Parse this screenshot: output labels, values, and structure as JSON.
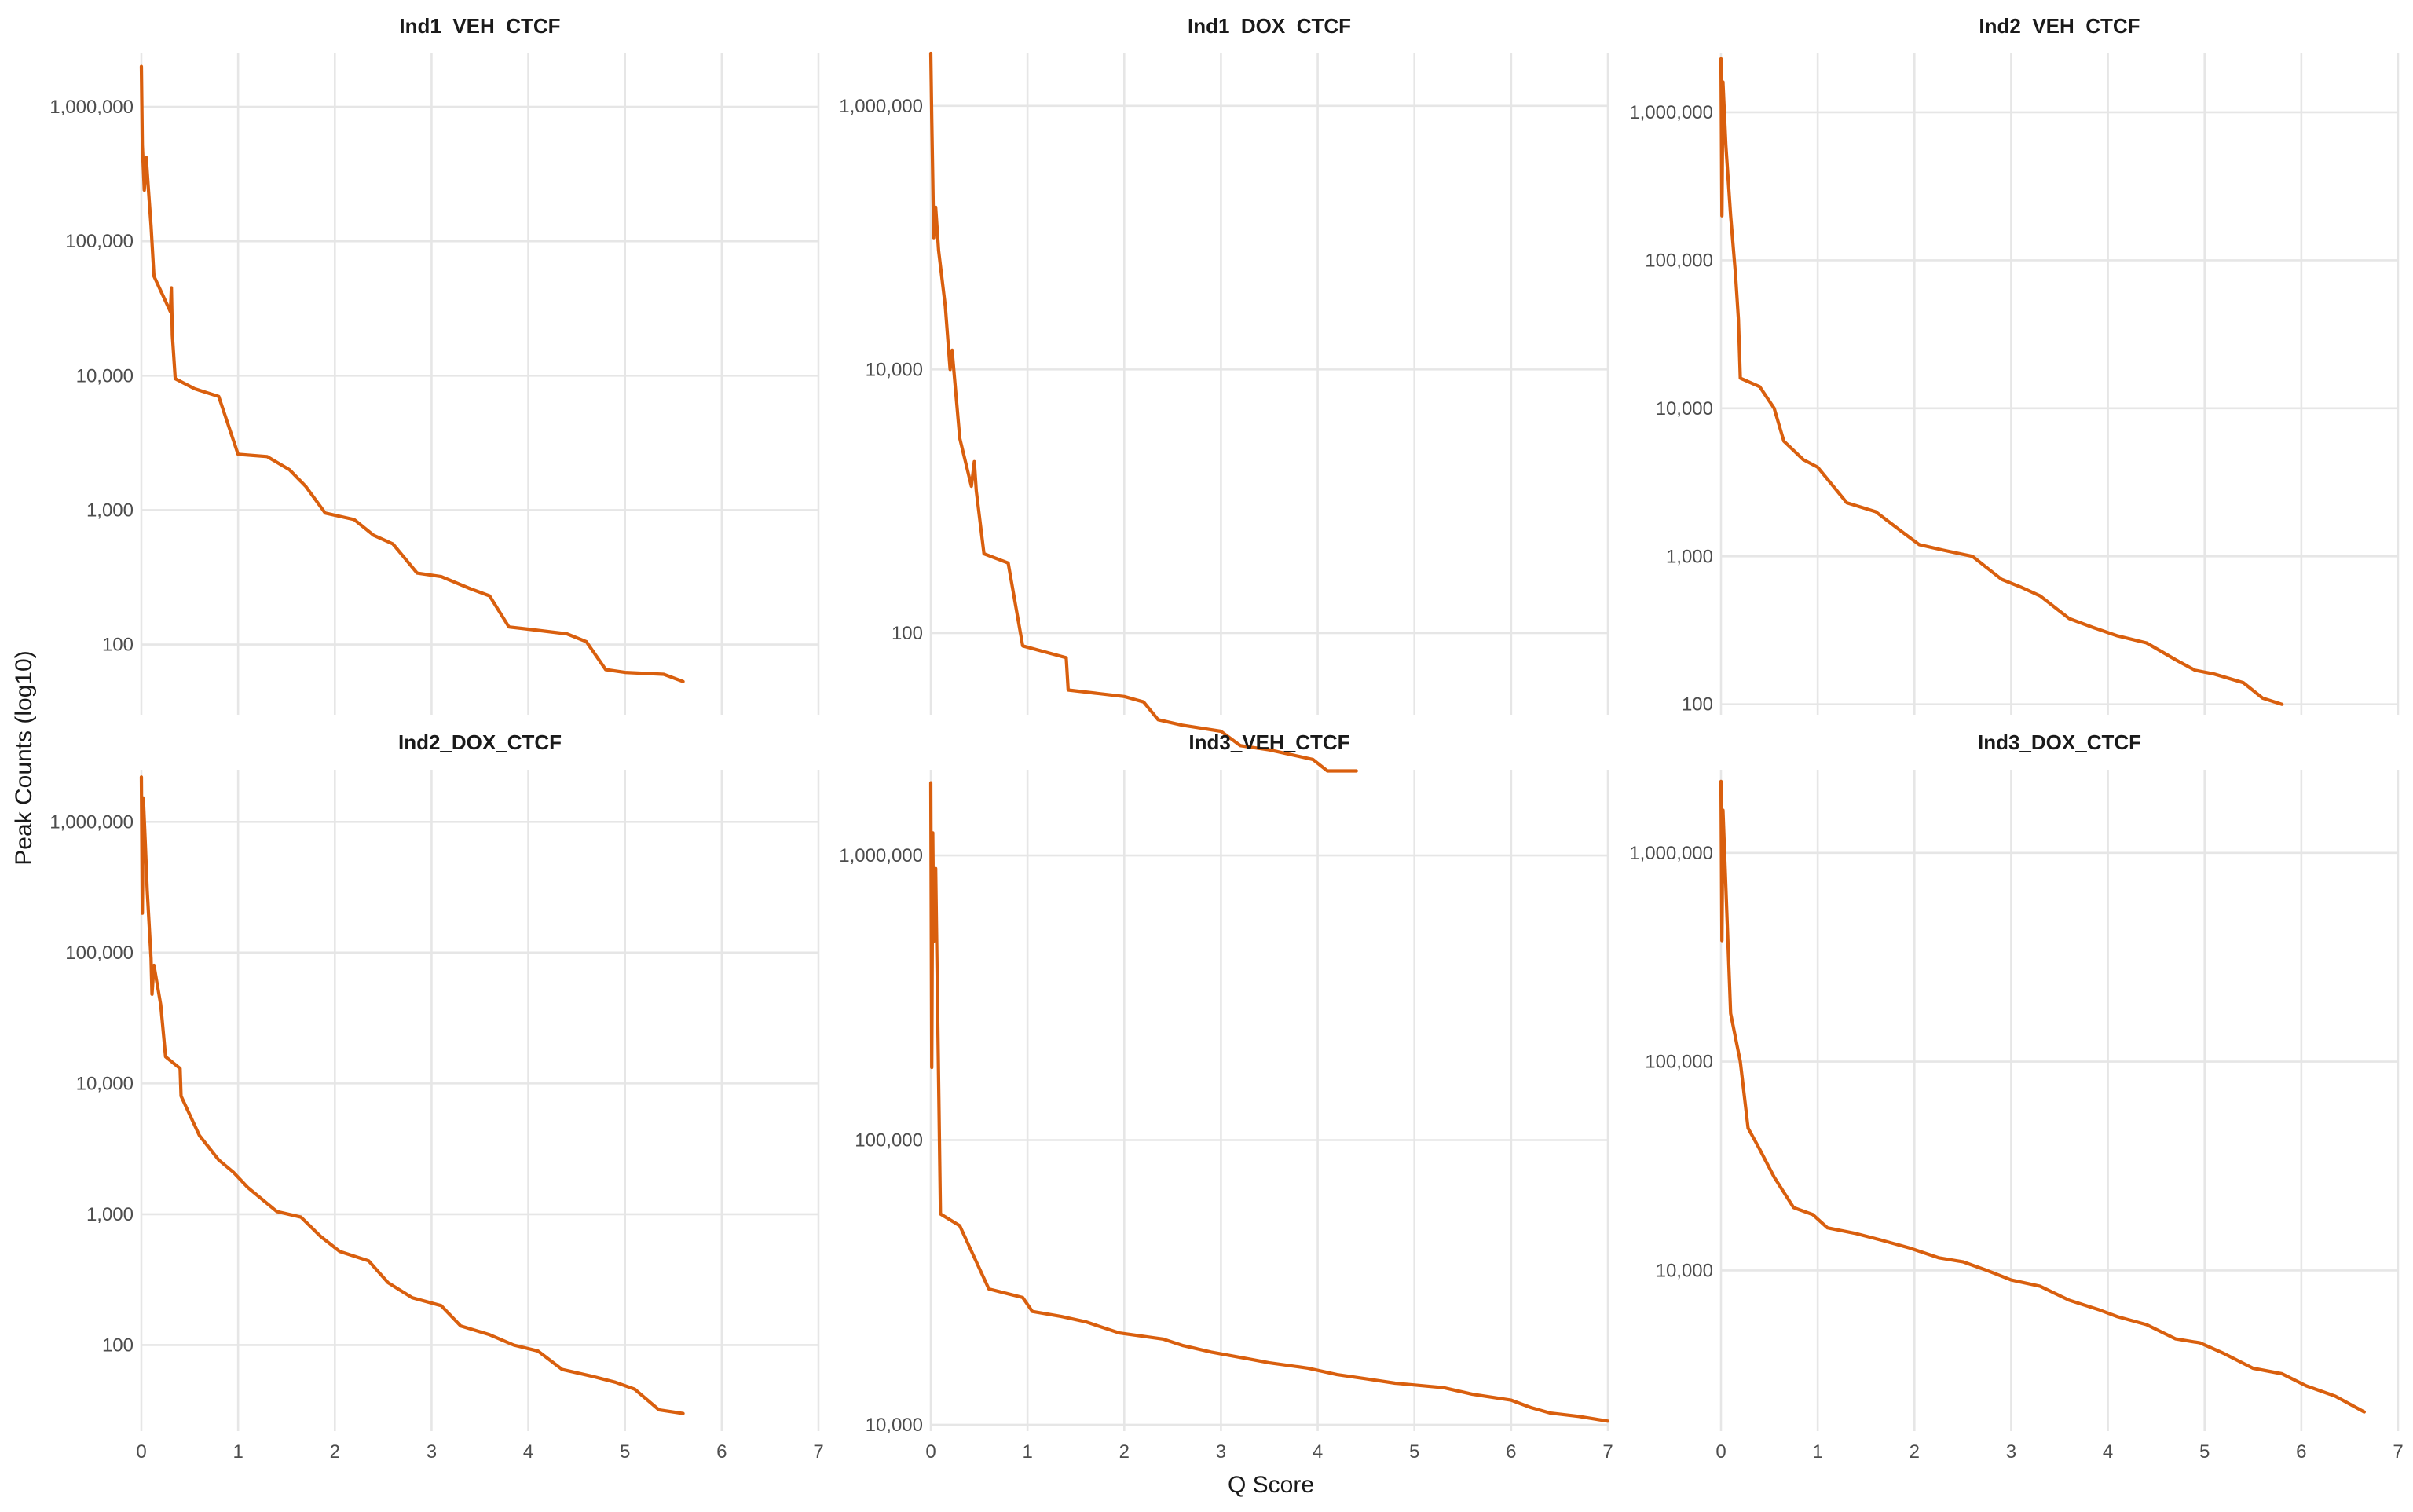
{
  "chart_data": {
    "type": "line",
    "xlabel": "Q Score",
    "ylabel": "Peak Counts (log10)",
    "y_scale": "log10",
    "grid": true,
    "legend": "none",
    "line_color": "#d95f0e",
    "layout": "2 rows x 3 columns",
    "panels": [
      {
        "title": "Ind1_VEH_CTCF",
        "xlim": [
          0,
          7
        ],
        "x_ticks": [
          0,
          1,
          2,
          3,
          4,
          5,
          6,
          7
        ],
        "ylim": [
          30,
          2500000
        ],
        "y_ticks": [
          100,
          1000,
          10000,
          100000,
          1000000
        ],
        "y_tick_labels": [
          "100",
          "1,000",
          "10,000",
          "100,000",
          "1,000,000"
        ],
        "x": [
          0,
          0.01,
          0.02,
          0.03,
          0.05,
          0.07,
          0.1,
          0.13,
          0.3,
          0.31,
          0.32,
          0.35,
          0.55,
          0.8,
          1.0,
          1.3,
          1.53,
          1.7,
          1.9,
          2.2,
          2.4,
          2.6,
          2.85,
          3.1,
          3.4,
          3.6,
          3.8,
          4.0,
          4.4,
          4.6,
          4.8,
          5.0,
          5.4,
          5.6
        ],
        "y": [
          2000000,
          520000,
          350000,
          240000,
          420000,
          260000,
          130000,
          55000,
          30000,
          45000,
          20000,
          9500,
          8000,
          7000,
          2600,
          2500,
          2000,
          1500,
          950,
          850,
          650,
          560,
          340,
          320,
          260,
          230,
          135,
          130,
          120,
          105,
          65,
          62,
          60,
          53
        ]
      },
      {
        "title": "Ind1_DOX_CTCF",
        "xlim": [
          0,
          7
        ],
        "x_ticks": [
          0,
          1,
          2,
          3,
          4,
          5,
          6,
          7
        ],
        "ylim": [
          24,
          2500000
        ],
        "y_ticks": [
          100,
          10000,
          1000000
        ],
        "y_tick_labels": [
          "100",
          "10,000",
          "1,000,000"
        ],
        "x": [
          0,
          0.01,
          0.02,
          0.03,
          0.05,
          0.08,
          0.15,
          0.2,
          0.22,
          0.3,
          0.42,
          0.45,
          0.47,
          0.55,
          0.8,
          0.95,
          1.4,
          1.42,
          1.7,
          2.0,
          2.2,
          2.35,
          2.6,
          3.0,
          3.2,
          3.5,
          3.95,
          4.1,
          4.4
        ],
        "y": [
          2500000,
          800000,
          280000,
          100000,
          170000,
          80000,
          30000,
          10000,
          14000,
          3000,
          1300,
          2000,
          1200,
          400,
          340,
          80,
          65,
          37,
          35,
          33,
          30,
          22,
          20,
          18,
          14,
          13,
          11,
          9,
          9
        ]
      },
      {
        "title": "Ind2_VEH_CTCF",
        "xlim": [
          0,
          7
        ],
        "x_ticks": [
          0,
          1,
          2,
          3,
          4,
          5,
          6,
          7
        ],
        "ylim": [
          85,
          2500000
        ],
        "y_ticks": [
          100,
          1000,
          10000,
          100000,
          1000000
        ],
        "y_tick_labels": [
          "100",
          "1,000",
          "10,000",
          "100,000",
          "1,000,000"
        ],
        "x": [
          0,
          0.01,
          0.02,
          0.05,
          0.1,
          0.15,
          0.18,
          0.2,
          0.4,
          0.55,
          0.65,
          0.85,
          1.0,
          1.3,
          1.6,
          1.85,
          2.05,
          2.3,
          2.6,
          2.9,
          3.1,
          3.3,
          3.6,
          3.85,
          4.1,
          4.4,
          4.7,
          4.9,
          5.1,
          5.4,
          5.6,
          5.8
        ],
        "y": [
          2300000,
          200000,
          1600000,
          600000,
          200000,
          80000,
          40000,
          16000,
          14000,
          10000,
          6000,
          4500,
          4000,
          2300,
          2000,
          1500,
          1200,
          1100,
          1000,
          700,
          620,
          540,
          380,
          330,
          290,
          260,
          200,
          170,
          160,
          140,
          110,
          100
        ]
      },
      {
        "title": "Ind2_DOX_CTCF",
        "xlim": [
          0,
          7
        ],
        "x_ticks": [
          0,
          1,
          2,
          3,
          4,
          5,
          6,
          7
        ],
        "ylim": [
          22,
          2500000
        ],
        "y_ticks": [
          100,
          1000,
          10000,
          100000,
          1000000
        ],
        "y_tick_labels": [
          "100",
          "1,000",
          "10,000",
          "100,000",
          "1,000,000"
        ],
        "x": [
          0,
          0.01,
          0.02,
          0.04,
          0.06,
          0.1,
          0.11,
          0.13,
          0.2,
          0.25,
          0.4,
          0.41,
          0.6,
          0.8,
          0.95,
          1.1,
          1.4,
          1.65,
          1.85,
          2.05,
          2.35,
          2.55,
          2.8,
          3.1,
          3.3,
          3.6,
          3.85,
          4.1,
          4.35,
          4.65,
          4.9,
          5.1,
          5.35,
          5.6
        ],
        "y": [
          2200000,
          200000,
          1500000,
          700000,
          300000,
          90000,
          48000,
          80000,
          40000,
          16000,
          13000,
          8000,
          4000,
          2600,
          2100,
          1600,
          1050,
          950,
          680,
          520,
          440,
          300,
          230,
          200,
          140,
          120,
          100,
          90,
          65,
          58,
          52,
          46,
          32,
          30
        ]
      },
      {
        "title": "Ind3_VEH_CTCF",
        "xlim": [
          0,
          7
        ],
        "x_ticks": [
          0,
          1,
          2,
          3,
          4,
          5,
          6,
          7
        ],
        "ylim": [
          9500,
          2000000
        ],
        "y_ticks": [
          10000,
          100000,
          1000000
        ],
        "y_tick_labels": [
          "10,000",
          "100,000",
          "1,000,000"
        ],
        "x": [
          0,
          0.01,
          0.02,
          0.03,
          0.05,
          0.07,
          0.1,
          0.3,
          0.6,
          0.95,
          1.05,
          1.35,
          1.6,
          1.95,
          2.4,
          2.6,
          2.9,
          3.3,
          3.5,
          3.9,
          4.2,
          4.5,
          4.8,
          5.3,
          5.6,
          6.0,
          6.2,
          6.4,
          6.7,
          7.0
        ],
        "y": [
          1800000,
          180000,
          1200000,
          500000,
          900000,
          300000,
          55000,
          50000,
          30000,
          28000,
          25000,
          24000,
          23000,
          21000,
          20000,
          19000,
          18000,
          17000,
          16500,
          15800,
          15000,
          14500,
          14000,
          13500,
          12800,
          12200,
          11500,
          11000,
          10700,
          10300
        ]
      },
      {
        "title": "Ind3_DOX_CTCF",
        "xlim": [
          0,
          7
        ],
        "x_ticks": [
          0,
          1,
          2,
          3,
          4,
          5,
          6,
          7
        ],
        "ylim": [
          1700,
          2500000
        ],
        "y_ticks": [
          10000,
          100000,
          1000000
        ],
        "y_tick_labels": [
          "10,000",
          "100,000",
          "1,000,000"
        ],
        "x": [
          0,
          0.01,
          0.02,
          0.1,
          0.2,
          0.28,
          0.4,
          0.55,
          0.75,
          0.95,
          1.1,
          1.4,
          1.65,
          1.95,
          2.25,
          2.5,
          2.75,
          3.0,
          3.3,
          3.6,
          3.9,
          4.1,
          4.4,
          4.7,
          4.95,
          5.2,
          5.5,
          5.8,
          6.05,
          6.35,
          6.65
        ],
        "y": [
          2200000,
          380000,
          1600000,
          170000,
          100000,
          48000,
          38000,
          28000,
          20000,
          18500,
          16000,
          15000,
          14000,
          12800,
          11500,
          11000,
          10000,
          9000,
          8400,
          7200,
          6500,
          6000,
          5500,
          4700,
          4500,
          4000,
          3400,
          3200,
          2800,
          2500,
          2100
        ]
      }
    ]
  }
}
